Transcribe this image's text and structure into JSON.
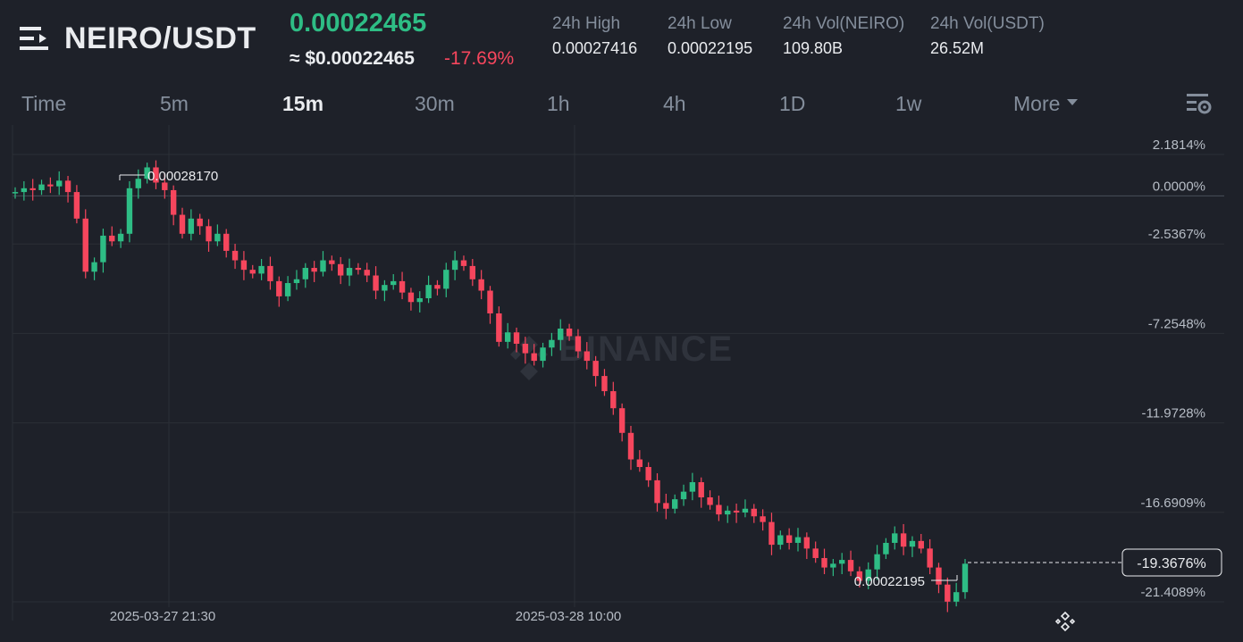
{
  "header": {
    "pair": "NEIRO/USDT",
    "last_price": "0.00022465",
    "usd_price": "≈ $0.00022465",
    "change_pct": "-17.69%",
    "stats": [
      {
        "label": "24h High",
        "value": "0.00027416"
      },
      {
        "label": "24h Low",
        "value": "0.00022195"
      },
      {
        "label": "24h Vol(NEIRO)",
        "value": "109.80B"
      },
      {
        "label": "24h Vol(USDT)",
        "value": "26.52M"
      }
    ]
  },
  "intervals": {
    "time": "Time",
    "m5": "5m",
    "m15": "15m",
    "m30": "30m",
    "h1": "1h",
    "h4": "4h",
    "d1": "1D",
    "w1": "1w",
    "more": "More",
    "active": "15m"
  },
  "chart": {
    "percent_labels": [
      "2.1814%",
      "0.0000%",
      "-2.5367%",
      "-7.2548%",
      "-11.9728%",
      "-16.6909%",
      "-21.4089%"
    ],
    "current_pct": "-19.3676%",
    "time_labels": [
      "2025-03-27 21:30",
      "2025-03-28 10:00"
    ],
    "high_marker": "0.00028170",
    "low_marker": "0.00022195",
    "watermark": "BINANCE",
    "colors": {
      "up": "#2ebd85",
      "down": "#f6465d",
      "grid": "#2b2f36",
      "background": "#1e2129"
    }
  },
  "chart_data": {
    "type": "candlestick",
    "pair": "NEIRO/USDT",
    "interval": "15m",
    "reference_price": 0.00027416,
    "y_axis": "percent change",
    "ylim": [
      -21.4089,
      2.1814
    ],
    "y_ticks": [
      2.1814,
      0.0,
      -2.5367,
      -7.2548,
      -11.9728,
      -16.6909,
      -21.4089
    ],
    "x_ticks": [
      "2025-03-27 21:30",
      "2025-03-28 10:00"
    ],
    "high": 0.0002817,
    "low": 0.00022195,
    "last_pct": -19.3676,
    "closes_pct": [
      0.2,
      0.4,
      0.3,
      0.6,
      0.5,
      0.8,
      0.2,
      -1.2,
      -4.0,
      -3.5,
      -2.1,
      -2.4,
      -2.0,
      0.4,
      0.9,
      1.5,
      0.7,
      0.3,
      -1.0,
      -2.0,
      -1.2,
      -1.6,
      -2.4,
      -2.0,
      -2.9,
      -3.4,
      -3.9,
      -4.1,
      -3.7,
      -4.5,
      -5.3,
      -4.6,
      -4.4,
      -3.8,
      -4.0,
      -3.4,
      -3.6,
      -4.2,
      -3.8,
      -3.9,
      -4.2,
      -5.0,
      -4.7,
      -4.5,
      -5.1,
      -5.6,
      -5.4,
      -4.7,
      -4.9,
      -3.9,
      -3.4,
      -3.7,
      -4.4,
      -5.0,
      -6.2,
      -7.7,
      -7.2,
      -7.8,
      -8.3,
      -8.7,
      -8.0,
      -7.6,
      -7.0,
      -7.4,
      -8.2,
      -8.7,
      -9.5,
      -10.3,
      -11.2,
      -12.5,
      -13.9,
      -14.3,
      -15.0,
      -16.2,
      -16.5,
      -16.0,
      -15.6,
      -15.1,
      -15.9,
      -16.3,
      -16.8,
      -16.6,
      -16.7,
      -16.5,
      -16.9,
      -17.2,
      -18.4,
      -17.9,
      -18.3,
      -18.0,
      -18.6,
      -19.1,
      -19.6,
      -19.4,
      -19.2,
      -19.8,
      -20.3,
      -19.7,
      -18.9,
      -18.3,
      -17.8,
      -18.5,
      -18.2,
      -18.6,
      -19.6,
      -20.5,
      -21.4,
      -20.9,
      -19.4
    ]
  }
}
